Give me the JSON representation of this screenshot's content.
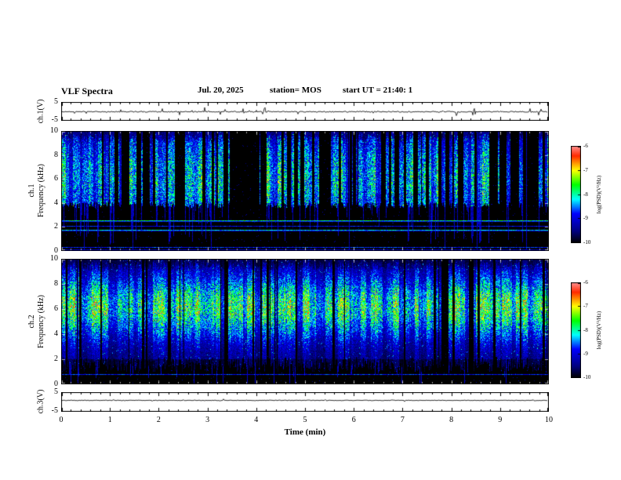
{
  "header": {
    "title": "VLF Spectra",
    "date": "Jul. 20, 2025",
    "station": "station= MOS",
    "start_ut": "start UT =  21:40: 1"
  },
  "xaxis": {
    "label": "Time (min)",
    "range": [
      0,
      10
    ],
    "major_ticks": [
      0,
      1,
      2,
      3,
      4,
      5,
      6,
      7,
      8,
      9,
      10
    ],
    "minor_per_major": 5
  },
  "palette": {
    "stops": [
      "#000000",
      "#000080",
      "#0000ff",
      "#00ffff",
      "#00ff00",
      "#ffff00",
      "#ff2a00",
      "#ff9090"
    ]
  },
  "chart_data": [
    {
      "type": "line",
      "id": "ch1-waveform",
      "ylabel": "ch.1(V)",
      "ylim": [
        -5,
        5
      ],
      "ytick_labels": [
        "5",
        "-5"
      ],
      "description": "Noisy near-zero voltage trace with many small narrow spikes over 0-10 min"
    },
    {
      "type": "heatmap",
      "id": "ch1-spectrogram",
      "channel": "ch.1",
      "ylabel": "Frequency (kHz)",
      "ylim": [
        0,
        10
      ],
      "yticks": [
        0,
        2,
        4,
        6,
        8,
        10
      ],
      "colorbar": {
        "label": "log(PSD)(V²/Hz)",
        "ticks": [
          -6,
          -7,
          -8,
          -9,
          -10
        ],
        "range": [
          -10,
          -6
        ]
      },
      "features": {
        "burst_band_khz": [
          3.6,
          10
        ],
        "burst_duty": 0.6,
        "vertical_streaks": true,
        "background": "black",
        "horizontal_lines": [
          {
            "khz": 0.12,
            "strength": 0.22
          },
          {
            "khz": 0.3,
            "strength": 0.3
          },
          {
            "khz": 1.75,
            "strength": 0.45
          },
          {
            "khz": 2.1,
            "strength": 0.28
          },
          {
            "khz": 2.55,
            "strength": 0.5
          }
        ]
      }
    },
    {
      "type": "heatmap",
      "id": "ch2-spectrogram",
      "channel": "ch.2",
      "ylabel": "Frequency (kHz)",
      "ylim": [
        0,
        10
      ],
      "yticks": [
        0,
        2,
        4,
        6,
        8,
        10
      ],
      "colorbar": {
        "label": "log(PSD)(V²/Hz)",
        "ticks": [
          -6,
          -7,
          -8,
          -9,
          -10
        ],
        "range": [
          -10,
          -6
        ]
      },
      "features": {
        "burst_band_khz": [
          1.0,
          10
        ],
        "hot_core_khz": [
          4.5,
          7.5
        ],
        "burst_duty": 0.78,
        "background": "black",
        "horizontal_lines": [
          {
            "khz": 0.8,
            "strength": 0.3
          }
        ]
      }
    },
    {
      "type": "line",
      "id": "ch3-waveform",
      "ylabel": "ch.3(V)",
      "ylim": [
        -5,
        5
      ],
      "ytick_labels": [
        "5",
        "-5"
      ],
      "description": "Nearly flat voltage trace slightly above zero with tiny fluctuations"
    }
  ]
}
